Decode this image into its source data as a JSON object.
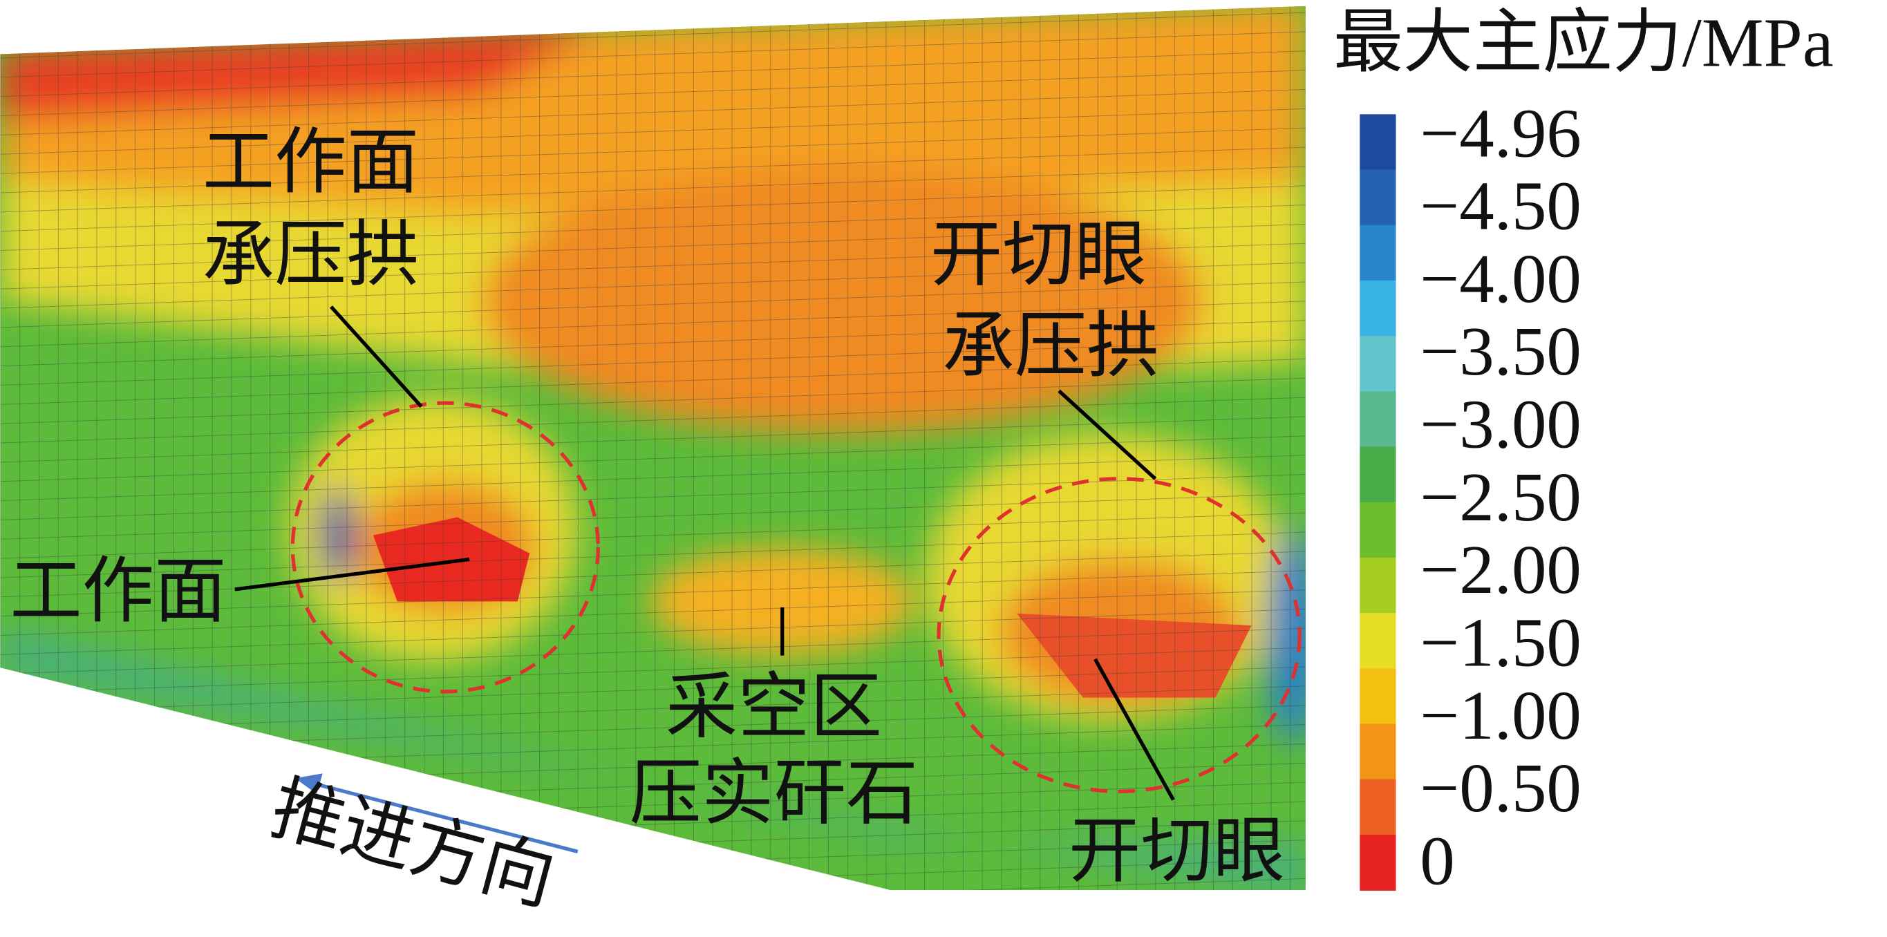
{
  "legend": {
    "title": "最大主应力/MPa",
    "labels": [
      "−4.96",
      "−4.50",
      "−4.00",
      "−3.50",
      "−3.00",
      "−2.50",
      "−2.00",
      "−1.50",
      "−1.00",
      "−0.50",
      "0"
    ]
  },
  "annotations": [
    {
      "lines": [
        "工作面",
        "承压拱"
      ]
    },
    {
      "lines": [
        "开切眼",
        "承压拱"
      ]
    },
    {
      "lines": [
        "工作面"
      ]
    },
    {
      "lines": [
        "采空区",
        "压实矸石"
      ]
    },
    {
      "lines": [
        "开切眼"
      ]
    },
    {
      "lines": [
        "推进方向"
      ]
    }
  ]
}
